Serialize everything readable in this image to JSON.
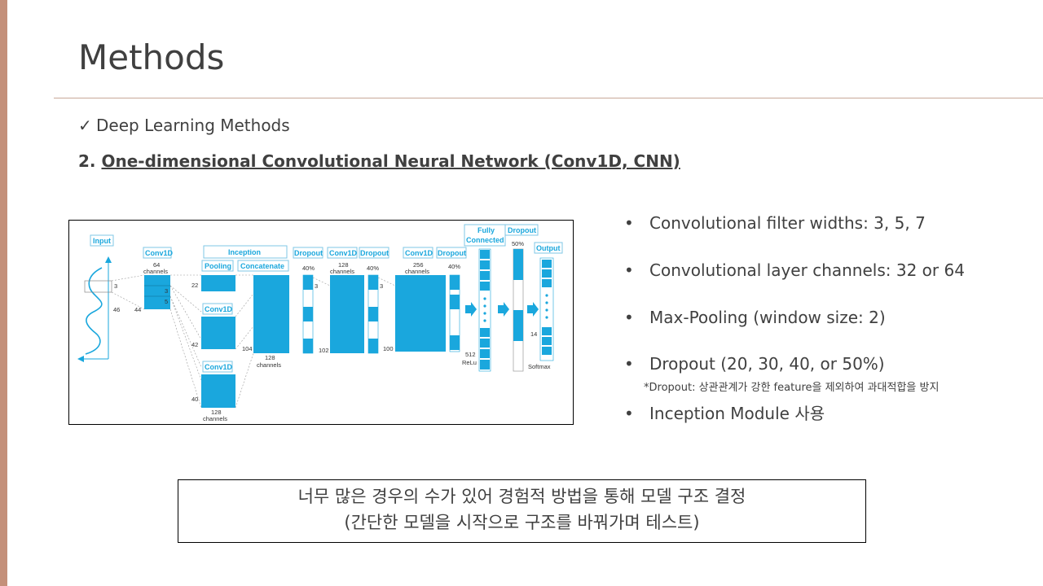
{
  "slide": {
    "title": "Methods",
    "check_mark": "✓",
    "check_text": "Deep Learning Methods",
    "subhead_number": "2.",
    "subhead_text": "One-dimensional Convolutional Neural Network (Conv1D, CNN)",
    "accent_color": "#c4907a"
  },
  "bullets": [
    {
      "text": "Convolutional filter widths: 3, 5, 7"
    },
    {
      "text": "Convolutional layer channels: 32 or 64"
    },
    {
      "text": "Max-Pooling (window size: 2)"
    },
    {
      "text": "Dropout (20, 30, 40, or 50%)"
    },
    {
      "text": "Inception Module 사용"
    }
  ],
  "bullet_symbol": "•",
  "dropout_note": "*Dropout: 상관관계가 강한 feature을 제외하여 과대적합을 방지",
  "callout": {
    "line1": "너무 많은 경우의 수가 있어 경험적 방법을 통해 모델 구조 결정",
    "line2": "(간단한 모델을 시작으로 구조를 바꿔가며 테스트)"
  },
  "diagram": {
    "block_color": "#1aa7dd",
    "header_color": "#1aa7dd",
    "headers": {
      "input": "Input",
      "conv1d_1": "Conv1D",
      "inception": "Inception",
      "pooling": "Pooling",
      "concatenate": "Concatenate",
      "conv1d_2": "Conv1D",
      "conv1d_3": "Conv1D",
      "dropout_1": "Dropout",
      "conv1d_4": "Conv1D",
      "dropout_2": "Dropout",
      "conv1d_5": "Conv1D",
      "dropout_3": "Dropout",
      "fully_1": "Fully",
      "fully_2": "Connected",
      "dropout_4": "Dropout",
      "output": "Output"
    },
    "labels": {
      "c1_channels_num": "64",
      "c1_channels_word": "channels",
      "c1_kernel": "3",
      "c1_kernel_b": "3",
      "c1_kernel_c": "5",
      "c1_len": "44",
      "input_len": "46",
      "pool_len": "22",
      "conv42": "42",
      "conv40": "40",
      "inc_ch_num": "128",
      "inc_ch_word": "channels",
      "concat_len": "104",
      "concat_ch_num": "128",
      "concat_ch_word": "channels",
      "d1_pct": "40%",
      "d1_k": "3",
      "c4_ch_num": "128",
      "c4_ch_word": "channels",
      "c4_len": "102",
      "d2_pct": "40%",
      "d2_k": "3",
      "c5_ch_num": "256",
      "c5_ch_word": "channels",
      "c5_len": "100",
      "d3_pct": "40%",
      "fc_num": "512",
      "fc_act": "ReLu",
      "d4_pct": "50%",
      "out_num": "14",
      "out_act": "Softmax"
    }
  }
}
